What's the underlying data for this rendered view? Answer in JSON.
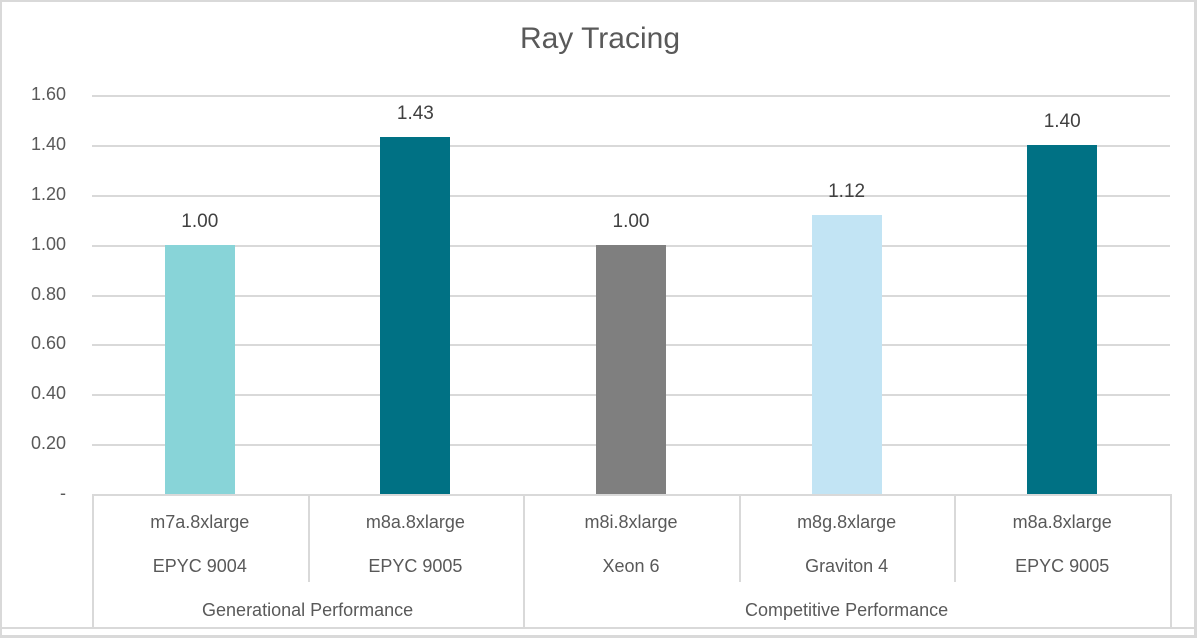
{
  "chart_data": {
    "type": "bar",
    "title": "Ray Tracing",
    "xlabel": "",
    "ylabel": "",
    "ylim": [
      0,
      1.6
    ],
    "yticks": [
      "-",
      "0.20",
      "0.40",
      "0.60",
      "0.80",
      "1.00",
      "1.20",
      "1.40",
      "1.60"
    ],
    "grid": true,
    "legend": null,
    "categories": [
      {
        "instance": "m7a.8xlarge",
        "cpu": "EPYC 9004",
        "group": "Generational Performance",
        "value": 1.0,
        "label": "1.00",
        "color": "#88d4d8"
      },
      {
        "instance": "m8a.8xlarge",
        "cpu": "EPYC 9005",
        "group": "Generational Performance",
        "value": 1.43,
        "label": "1.43",
        "color": "#007184"
      },
      {
        "instance": "m8i.8xlarge",
        "cpu": "Xeon 6",
        "group": "Competitive Performance",
        "value": 1.0,
        "label": "1.00",
        "color": "#7f7f7f"
      },
      {
        "instance": "m8g.8xlarge",
        "cpu": "Graviton 4",
        "group": "Competitive Performance",
        "value": 1.12,
        "label": "1.12",
        "color": "#c2e4f4"
      },
      {
        "instance": "m8a.8xlarge",
        "cpu": "EPYC 9005",
        "group": "Competitive Performance",
        "value": 1.4,
        "label": "1.40",
        "color": "#007184"
      }
    ],
    "groups": [
      "Generational Performance",
      "Competitive Performance"
    ]
  }
}
